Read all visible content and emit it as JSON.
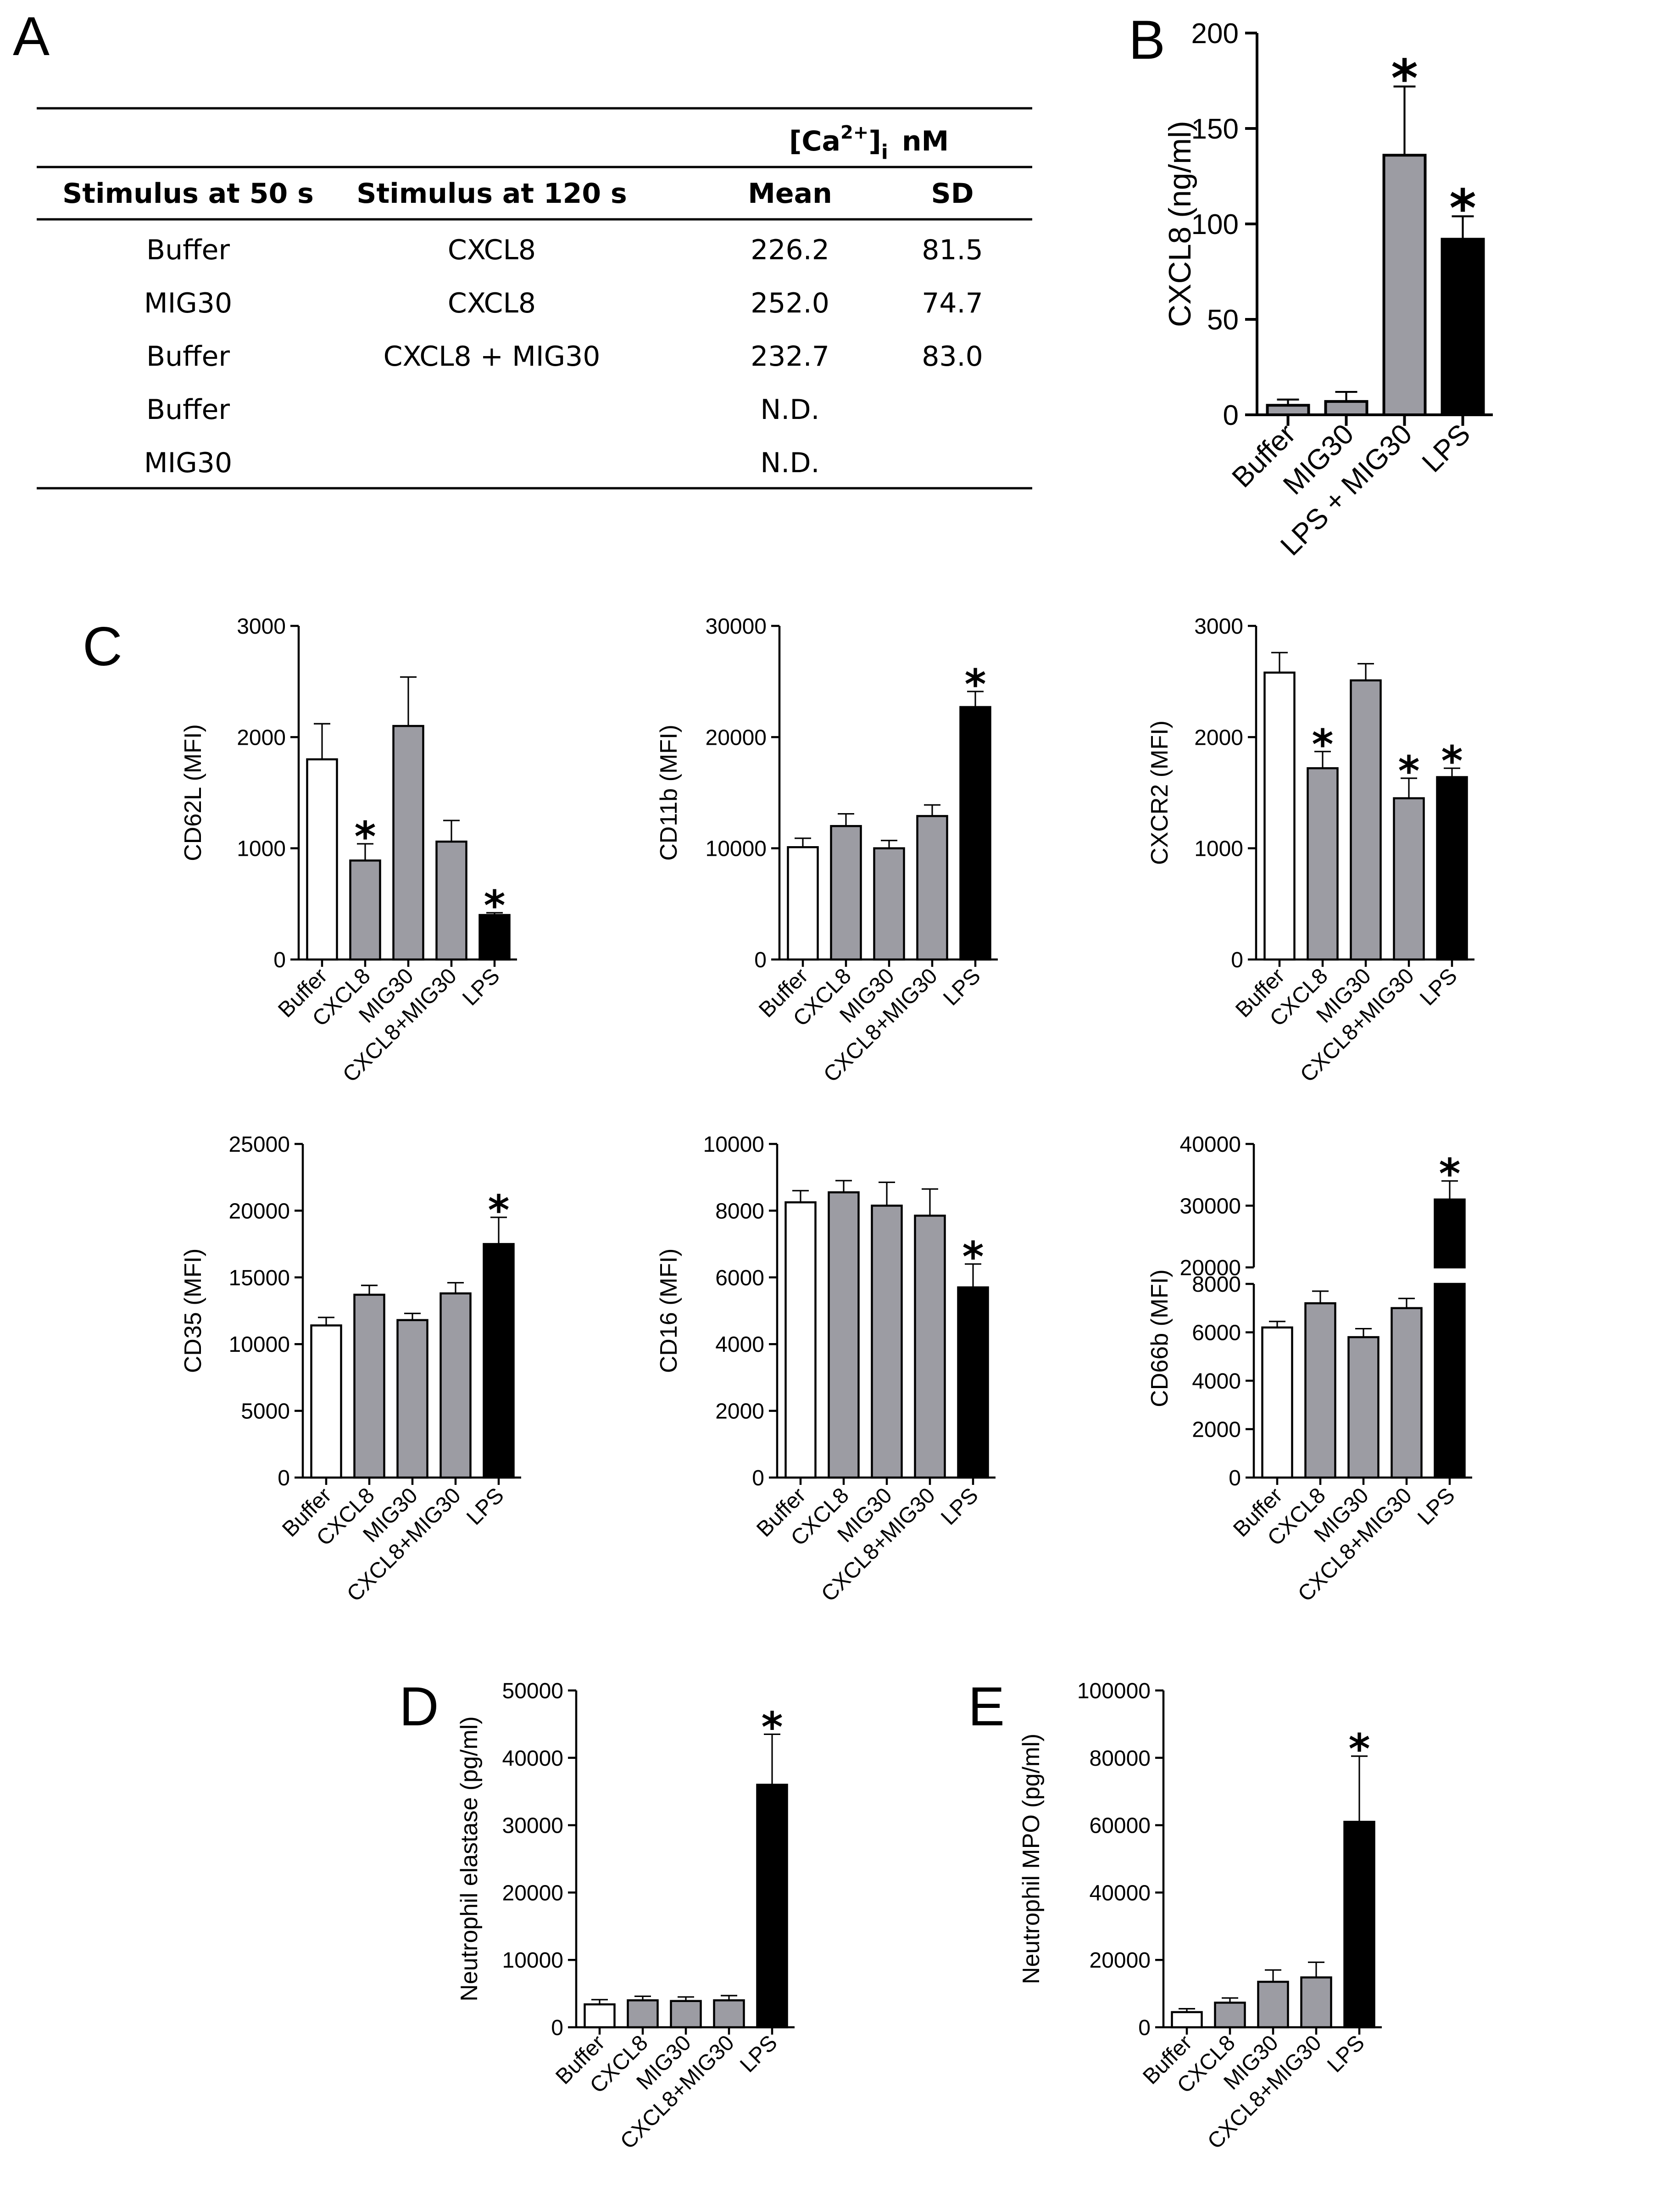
{
  "panel_labels": {
    "a": "A",
    "b": "B",
    "c": "C",
    "d": "D",
    "e": "E"
  },
  "table": {
    "unit_group_header": "[Ca2+]i nM",
    "unit_group_header_parts": {
      "bracket_open": "[Ca",
      "sup": "2+",
      "bracket_close": "]",
      "sub": "i",
      "unit": "nM"
    },
    "columns": [
      "Stimulus at 50 s",
      "Stimulus at 120 s",
      "Mean",
      "SD"
    ],
    "rows": [
      [
        "Buffer",
        "CXCL8",
        "226.2",
        "81.5"
      ],
      [
        "MIG30",
        "CXCL8",
        "252.0",
        "74.7"
      ],
      [
        "Buffer",
        "CXCL8 + MIG30",
        "232.7",
        "83.0"
      ],
      [
        "Buffer",
        "",
        "N.D.",
        ""
      ],
      [
        "MIG30",
        "",
        "N.D.",
        ""
      ]
    ]
  },
  "colors": {
    "white": "#ffffff",
    "gray": "#9c9ca3",
    "black": "#000000",
    "axis": "#000000"
  },
  "chart_data": [
    {
      "id": "B",
      "type": "bar",
      "ylabel": "CXCL8 (ng/ml)",
      "categories": [
        "Buffer",
        "MIG30",
        "LPS + MIG30",
        "LPS"
      ],
      "values": [
        5,
        7,
        136,
        92
      ],
      "errors": [
        3,
        5,
        36,
        12
      ],
      "fills": [
        "gray",
        "gray",
        "gray",
        "black"
      ],
      "significant": [
        false,
        false,
        true,
        true
      ],
      "ylim": [
        0,
        200
      ],
      "yticks": [
        0,
        50,
        100,
        150,
        200
      ],
      "ytick_labels": [
        "0",
        "50",
        "100",
        "150",
        "200"
      ]
    },
    {
      "id": "C1",
      "type": "bar",
      "ylabel": "CD62L (MFI)",
      "categories": [
        "Buffer",
        "CXCL8",
        "MIG30",
        "CXCL8+MIG30",
        "LPS"
      ],
      "values": [
        1800,
        890,
        2100,
        1060,
        400
      ],
      "errors": [
        320,
        150,
        440,
        190,
        20
      ],
      "fills": [
        "white",
        "gray",
        "gray",
        "gray",
        "black"
      ],
      "significant": [
        false,
        true,
        false,
        false,
        true
      ],
      "ylim": [
        0,
        3000
      ],
      "yticks": [
        0,
        1000,
        2000,
        3000
      ],
      "ytick_labels": [
        "0",
        "1000",
        "2000",
        "3000"
      ]
    },
    {
      "id": "C2",
      "type": "bar",
      "ylabel": "CD11b (MFI)",
      "categories": [
        "Buffer",
        "CXCL8",
        "MIG30",
        "CXCL8+MIG30",
        "LPS"
      ],
      "values": [
        10100,
        12000,
        10000,
        12900,
        22700
      ],
      "errors": [
        800,
        1100,
        700,
        1000,
        1400
      ],
      "fills": [
        "white",
        "gray",
        "gray",
        "gray",
        "black"
      ],
      "significant": [
        false,
        false,
        false,
        false,
        true
      ],
      "ylim": [
        0,
        30000
      ],
      "yticks": [
        0,
        10000,
        20000,
        30000
      ],
      "ytick_labels": [
        "0",
        "10000",
        "20000",
        "30000"
      ]
    },
    {
      "id": "C3",
      "type": "bar",
      "ylabel": "CXCR2 (MFI)",
      "categories": [
        "Buffer",
        "CXCL8",
        "MIG30",
        "CXCL8+MIG30",
        "LPS"
      ],
      "values": [
        2580,
        1720,
        2510,
        1450,
        1640
      ],
      "errors": [
        180,
        150,
        150,
        180,
        80
      ],
      "fills": [
        "white",
        "gray",
        "gray",
        "gray",
        "black"
      ],
      "significant": [
        false,
        true,
        false,
        true,
        true
      ],
      "ylim": [
        0,
        3000
      ],
      "yticks": [
        0,
        1000,
        2000,
        3000
      ],
      "ytick_labels": [
        "0",
        "1000",
        "2000",
        "3000"
      ]
    },
    {
      "id": "C4",
      "type": "bar",
      "ylabel": "CD35 (MFI)",
      "categories": [
        "Buffer",
        "CXCL8",
        "MIG30",
        "CXCL8+MIG30",
        "LPS"
      ],
      "values": [
        11400,
        13700,
        11800,
        13800,
        17500
      ],
      "errors": [
        600,
        700,
        500,
        800,
        2000
      ],
      "fills": [
        "white",
        "gray",
        "gray",
        "gray",
        "black"
      ],
      "significant": [
        false,
        false,
        false,
        false,
        true
      ],
      "ylim": [
        0,
        25000
      ],
      "yticks": [
        0,
        5000,
        10000,
        15000,
        20000,
        25000
      ],
      "ytick_labels": [
        "0",
        "5000",
        "10000",
        "15000",
        "20000",
        "25000"
      ]
    },
    {
      "id": "C5",
      "type": "bar",
      "ylabel": "CD16 (MFI)",
      "categories": [
        "Buffer",
        "CXCL8",
        "MIG30",
        "CXCL8+MIG30",
        "LPS"
      ],
      "values": [
        8250,
        8550,
        8150,
        7850,
        5700
      ],
      "errors": [
        350,
        350,
        700,
        800,
        700
      ],
      "fills": [
        "white",
        "gray",
        "gray",
        "gray",
        "black"
      ],
      "significant": [
        false,
        false,
        false,
        false,
        true
      ],
      "ylim": [
        0,
        10000
      ],
      "yticks": [
        0,
        2000,
        4000,
        6000,
        8000,
        10000
      ],
      "ytick_labels": [
        "0",
        "2000",
        "4000",
        "6000",
        "8000",
        "10000"
      ]
    },
    {
      "id": "C6",
      "type": "bar",
      "ylabel": "CD66b (MFI)",
      "broken_axis": true,
      "categories": [
        "Buffer",
        "CXCL8",
        "MIG30",
        "CXCL8+MIG30",
        "LPS"
      ],
      "values": [
        6200,
        7200,
        5800,
        7000,
        31000
      ],
      "errors": [
        250,
        500,
        350,
        400,
        3000
      ],
      "fills": [
        "white",
        "gray",
        "gray",
        "gray",
        "black"
      ],
      "significant": [
        false,
        false,
        false,
        false,
        true
      ],
      "ylim_lower": [
        0,
        8000
      ],
      "ylim_upper": [
        20000,
        40000
      ],
      "yticks_lower": [
        0,
        2000,
        4000,
        6000,
        8000
      ],
      "ytick_labels_lower": [
        "0",
        "2000",
        "4000",
        "6000",
        "8000"
      ],
      "yticks_upper": [
        20000,
        30000,
        40000
      ],
      "ytick_labels_upper": [
        "20000",
        "30000",
        "40000"
      ]
    },
    {
      "id": "D",
      "type": "bar",
      "ylabel": "Neutrophil elastase (pg/ml)",
      "categories": [
        "Buffer",
        "CXCL8",
        "MIG30",
        "CXCL8+MIG30",
        "LPS"
      ],
      "values": [
        3400,
        4000,
        3900,
        4000,
        36000
      ],
      "errors": [
        700,
        600,
        600,
        700,
        7500
      ],
      "fills": [
        "white",
        "gray",
        "gray",
        "gray",
        "black"
      ],
      "significant": [
        false,
        false,
        false,
        false,
        true
      ],
      "ylim": [
        0,
        50000
      ],
      "yticks": [
        0,
        10000,
        20000,
        30000,
        40000,
        50000
      ],
      "ytick_labels": [
        "0",
        "10000",
        "20000",
        "30000",
        "40000",
        "50000"
      ]
    },
    {
      "id": "E",
      "type": "bar",
      "ylabel": "Neutrophil MPO (pg/ml)",
      "categories": [
        "Buffer",
        "CXCL8",
        "MIG30",
        "CXCL8+MIG30",
        "LPS"
      ],
      "values": [
        4500,
        7300,
        13500,
        14800,
        61000
      ],
      "errors": [
        1000,
        1400,
        3500,
        4500,
        19500
      ],
      "fills": [
        "white",
        "gray",
        "gray",
        "gray",
        "black"
      ],
      "significant": [
        false,
        false,
        false,
        false,
        true
      ],
      "ylim": [
        0,
        100000
      ],
      "yticks": [
        0,
        20000,
        40000,
        60000,
        80000,
        100000
      ],
      "ytick_labels": [
        "0",
        "20000",
        "40000",
        "60000",
        "80000",
        "100000"
      ]
    }
  ],
  "significance_symbol": "*"
}
